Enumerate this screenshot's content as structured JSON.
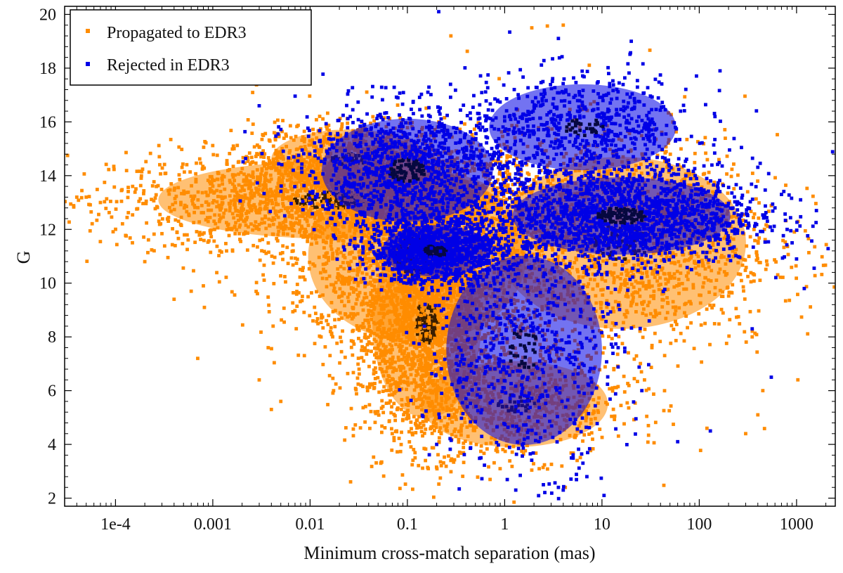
{
  "chart_data": {
    "type": "scatter",
    "title": "",
    "xlabel": "Minimum cross-match separation (mas)",
    "ylabel": "G",
    "xscale": "log",
    "xlim": [
      3e-05,
      2500
    ],
    "ylim": [
      1.7,
      20.3
    ],
    "x_ticks": [
      0.0001,
      0.001,
      0.01,
      0.1,
      1,
      10,
      100,
      1000
    ],
    "x_tick_labels": [
      "1e-4",
      "0.001",
      "0.01",
      "0.1",
      "1",
      "10",
      "100",
      "1000"
    ],
    "y_ticks": [
      2,
      4,
      6,
      8,
      10,
      12,
      14,
      16,
      18,
      20
    ],
    "y_tick_labels": [
      "2",
      "4",
      "6",
      "8",
      "10",
      "12",
      "14",
      "16",
      "18",
      "20"
    ],
    "grid": false,
    "legend_position": "top-left",
    "series": [
      {
        "name": "Propagated to EDR3",
        "color": "#ff8c00",
        "density_core_color": "#3a1e00",
        "regions": [
          {
            "desc": "horizontal band",
            "log10x_mean": -1.8,
            "log10x_sd": 1.1,
            "g_mean": 13.1,
            "g_sd": 0.9,
            "weight": 0.22
          },
          {
            "desc": "upper wing",
            "log10x_mean": -1.6,
            "log10x_sd": 0.5,
            "g_mean": 14.6,
            "g_sd": 0.7,
            "weight": 0.08
          },
          {
            "desc": "vertical plume",
            "log10x_mean": -0.8,
            "log10x_sd": 0.35,
            "g_mean": 8.5,
            "g_sd": 2.2,
            "weight": 0.22
          },
          {
            "desc": "central cloud",
            "log10x_mean": -0.9,
            "log10x_sd": 0.7,
            "g_mean": 11.0,
            "g_sd": 2.0,
            "weight": 0.22
          },
          {
            "desc": "right lobe",
            "log10x_mean": 1.2,
            "log10x_sd": 0.8,
            "g_mean": 11.5,
            "g_sd": 2.0,
            "weight": 0.18
          },
          {
            "desc": "lower spread",
            "log10x_mean": 0.1,
            "log10x_sd": 0.6,
            "g_mean": 5.5,
            "g_sd": 1.0,
            "weight": 0.08
          }
        ],
        "outliers": [
          {
            "x": 4e-05,
            "g": 13.2
          },
          {
            "x": 5e-05,
            "g": 13.2
          },
          {
            "x": 7e-05,
            "g": 13.0
          },
          {
            "x": 0.00015,
            "g": 13.6
          },
          {
            "x": 0.0002,
            "g": 10.8
          },
          {
            "x": 0.0004,
            "g": 9.4
          },
          {
            "x": 0.0006,
            "g": 9.7
          },
          {
            "x": 0.0007,
            "g": 7.2
          },
          {
            "x": 0.0008,
            "g": 9.9
          },
          {
            "x": 0.003,
            "g": 6.4
          },
          {
            "x": 0.004,
            "g": 5.3
          },
          {
            "x": 0.005,
            "g": 5.6
          },
          {
            "x": 0.12,
            "g": 3.5
          },
          {
            "x": 1.9,
            "g": 19.5
          },
          {
            "x": 4.0,
            "g": 19.6
          },
          {
            "x": 0.28,
            "g": 19.2
          },
          {
            "x": 4.2,
            "g": 2.4
          },
          {
            "x": 300,
            "g": 4.4
          },
          {
            "x": 350,
            "g": 8.0
          },
          {
            "x": 450,
            "g": 6.0
          },
          {
            "x": 400,
            "g": 5.1
          },
          {
            "x": 30,
            "g": 4.7
          },
          {
            "x": 120,
            "g": 4.6
          }
        ]
      },
      {
        "name": "Rejected in EDR3",
        "color": "#0000e6",
        "density_core_color": "#060840",
        "regions": [
          {
            "desc": "central cluster",
            "log10x_mean": -0.7,
            "log10x_sd": 0.35,
            "g_mean": 11.2,
            "g_sd": 0.6,
            "weight": 0.22
          },
          {
            "desc": "upper-left cloud",
            "log10x_mean": -1.0,
            "log10x_sd": 0.55,
            "g_mean": 14.2,
            "g_sd": 1.2,
            "weight": 0.22
          },
          {
            "desc": "right band",
            "log10x_mean": 1.2,
            "log10x_sd": 0.7,
            "g_mean": 12.5,
            "g_sd": 0.9,
            "weight": 0.32
          },
          {
            "desc": "upper-right spread",
            "log10x_mean": 0.8,
            "log10x_sd": 0.6,
            "g_mean": 15.8,
            "g_sd": 1.0,
            "weight": 0.12
          },
          {
            "desc": "lower tail",
            "log10x_mean": 0.2,
            "log10x_sd": 0.5,
            "g_mean": 7.5,
            "g_sd": 2.2,
            "weight": 0.12
          }
        ],
        "outliers": [
          {
            "x": 0.21,
            "g": 20.1
          },
          {
            "x": 20,
            "g": 19.0
          },
          {
            "x": 600,
            "g": 12.8
          },
          {
            "x": 700,
            "g": 13.3
          },
          {
            "x": 800,
            "g": 12.0
          },
          {
            "x": 900,
            "g": 11.5
          },
          {
            "x": 1000,
            "g": 10.9
          },
          {
            "x": 1200,
            "g": 9.8
          },
          {
            "x": 1600,
            "g": 12.7
          },
          {
            "x": 1100,
            "g": 13.1
          },
          {
            "x": 350,
            "g": 8.3
          },
          {
            "x": 550,
            "g": 6.5
          },
          {
            "x": 10.5,
            "g": 2.1
          },
          {
            "x": 4.0,
            "g": 2.3
          },
          {
            "x": 7,
            "g": 2.8
          },
          {
            "x": 2.5,
            "g": 2.5
          },
          {
            "x": 1.3,
            "g": 2.3
          },
          {
            "x": 130,
            "g": 4.5
          },
          {
            "x": 60,
            "g": 4.1
          },
          {
            "x": 0.003,
            "g": 16.6
          },
          {
            "x": 0.2,
            "g": 4.0
          }
        ]
      }
    ]
  }
}
